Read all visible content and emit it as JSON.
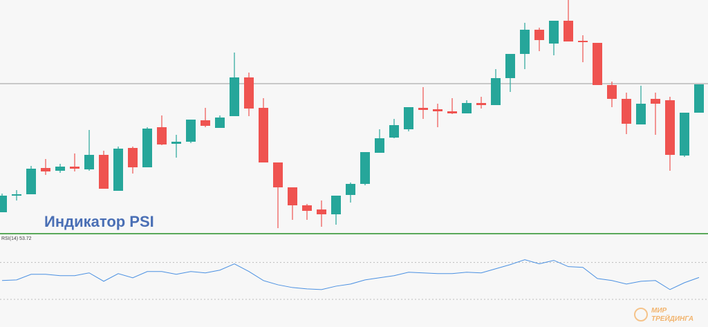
{
  "chart_data": {
    "type": "candlestick",
    "title": "Индикатор PSI",
    "ylim": [
      0,
      340
    ],
    "up_color": "#26a69a",
    "down_color": "#ef5350",
    "hline": 219,
    "open": [
      33,
      57,
      59,
      97,
      93,
      99,
      95,
      116,
      64,
      126,
      98,
      156,
      132,
      135,
      166,
      155,
      172,
      228,
      184,
      105,
      69,
      43,
      37,
      30,
      58,
      74,
      119,
      141,
      153,
      184,
      182,
      179,
      176,
      191,
      188,
      227,
      262,
      297,
      277,
      310,
      281,
      278,
      217,
      197,
      160,
      197,
      195,
      115,
      177
    ],
    "high": [
      60,
      65,
      100,
      110,
      103,
      118,
      152,
      122,
      128,
      128,
      156,
      173,
      145,
      167,
      184,
      173,
      264,
      235,
      198,
      105,
      69,
      45,
      50,
      57,
      76,
      120,
      153,
      168,
      185,
      214,
      190,
      198,
      195,
      200,
      240,
      262,
      307,
      300,
      310,
      340,
      289,
      278,
      222,
      206,
      216,
      206,
      200,
      177,
      218
    ],
    "low": [
      33,
      50,
      59,
      87,
      90,
      92,
      93,
      67,
      64,
      89,
      98,
      130,
      112,
      133,
      156,
      155,
      172,
      172,
      105,
      10,
      22,
      22,
      12,
      15,
      47,
      72,
      119,
      140,
      150,
      168,
      156,
      175,
      176,
      183,
      188,
      207,
      240,
      266,
      260,
      280,
      250,
      217,
      185,
      146,
      160,
      145,
      93,
      113,
      177
    ],
    "close": [
      57,
      59,
      96,
      92,
      99,
      96,
      116,
      67,
      125,
      98,
      154,
      131,
      135,
      167,
      158,
      170,
      228,
      183,
      105,
      69,
      43,
      35,
      30,
      57,
      74,
      120,
      140,
      159,
      185,
      181,
      179,
      176,
      191,
      188,
      227,
      262,
      297,
      282,
      310,
      280,
      279,
      217,
      197,
      161,
      190,
      190,
      116,
      177,
      218
    ],
    "indicator": {
      "label": "RSI(14) 53.72",
      "color": "#4a90e2",
      "ylim": [
        21,
        96
      ],
      "levels": [
        30,
        70
      ],
      "values": [
        50.4,
        51.1,
        57.2,
        57.2,
        55.7,
        55.7,
        58.7,
        49.6,
        57.9,
        53.4,
        60.2,
        60.2,
        57.2,
        60.2,
        58.7,
        61.7,
        68.5,
        60.2,
        50.4,
        45.8,
        42.8,
        41.3,
        40.6,
        44.3,
        46.6,
        51.1,
        53.4,
        55.7,
        59.4,
        58.7,
        57.9,
        57.9,
        59.4,
        58.7,
        63.2,
        67.7,
        73.0,
        68.5,
        72.3,
        65.5,
        64.7,
        52.6,
        50.4,
        46.6,
        49.6,
        50.4,
        40.6,
        48.1,
        53.72
      ]
    },
    "watermark": [
      "МИР",
      "ТРЕЙДИНГА"
    ]
  }
}
